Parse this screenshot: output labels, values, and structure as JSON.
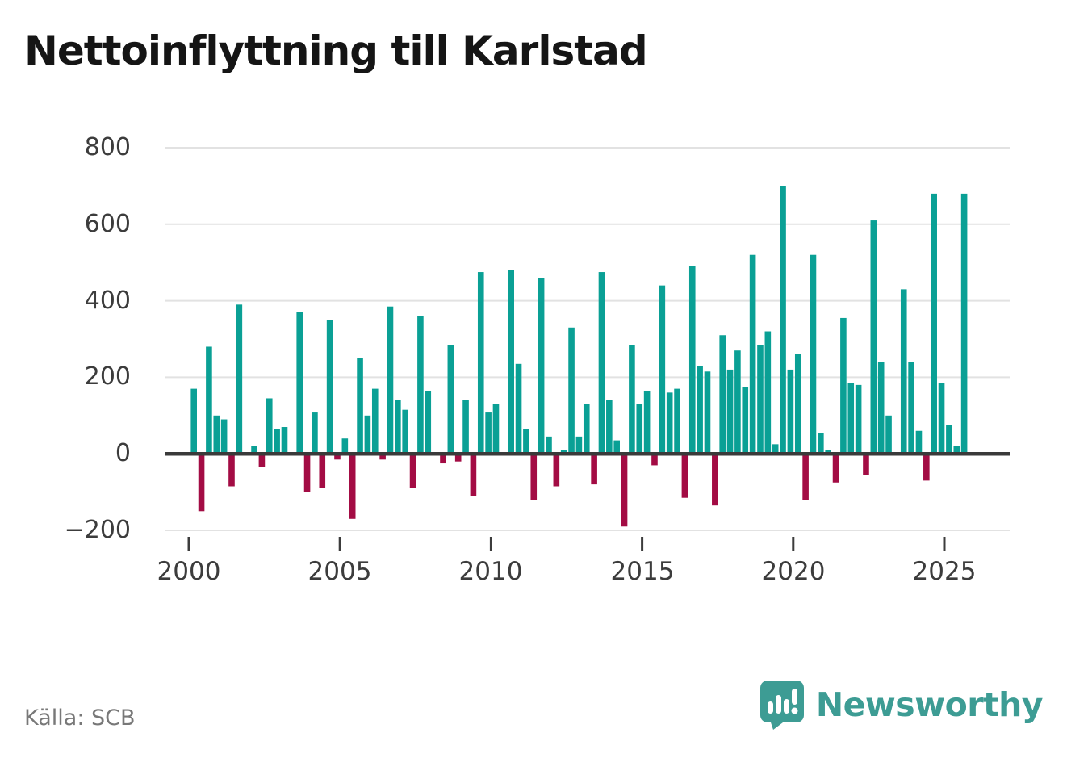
{
  "title": "Nettoinflyttning till Karlstad",
  "source": "Källa: SCB",
  "branding": {
    "name": "Newsworthy",
    "logo_icon": "speech-bubble-bar-chart"
  },
  "colors": {
    "positive_bar": "#0aa095",
    "negative_bar": "#a30c44",
    "grid": "#e2e2e2",
    "zero_line": "#3a3a3a",
    "axis_text": "#3c3c3c",
    "title_text": "#151515",
    "source_text": "#787878",
    "brand_teal": "#3d9c94"
  },
  "chart_data": {
    "type": "bar",
    "title": "Nettoinflyttning till Karlstad",
    "description": "Quarterly net migration to Karlstad, positive bars teal, negative bars crimson",
    "x_period": "quarterly",
    "x_range": [
      "2000 Q1",
      "2025 Q3"
    ],
    "ylim": [
      -200,
      800
    ],
    "grid": true,
    "ytick_values": [
      800,
      600,
      400,
      200,
      0,
      -200
    ],
    "ytick_labels": [
      "800",
      "600",
      "400",
      "200",
      "0",
      "−200"
    ],
    "xtick_years": [
      2000,
      2005,
      2010,
      2015,
      2020,
      2025
    ],
    "xtick_labels": [
      "2000",
      "2005",
      "2010",
      "2015",
      "2020",
      "2025"
    ],
    "series": [
      {
        "year": 2000,
        "values": [
          170,
          -150,
          280,
          100
        ]
      },
      {
        "year": 2001,
        "values": [
          90,
          -85,
          390,
          0
        ]
      },
      {
        "year": 2002,
        "values": [
          20,
          -35,
          145,
          65
        ]
      },
      {
        "year": 2003,
        "values": [
          70,
          0,
          370,
          -100
        ]
      },
      {
        "year": 2004,
        "values": [
          110,
          -90,
          350,
          -15
        ]
      },
      {
        "year": 2005,
        "values": [
          40,
          -170,
          250,
          100
        ]
      },
      {
        "year": 2006,
        "values": [
          170,
          -15,
          385,
          140
        ]
      },
      {
        "year": 2007,
        "values": [
          115,
          -90,
          360,
          165
        ]
      },
      {
        "year": 2008,
        "values": [
          0,
          -25,
          285,
          -20
        ]
      },
      {
        "year": 2009,
        "values": [
          140,
          -110,
          475,
          110
        ]
      },
      {
        "year": 2010,
        "values": [
          130,
          0,
          480,
          235
        ]
      },
      {
        "year": 2011,
        "values": [
          65,
          -120,
          460,
          45
        ]
      },
      {
        "year": 2012,
        "values": [
          -85,
          10,
          330,
          45
        ]
      },
      {
        "year": 2013,
        "values": [
          130,
          -80,
          475,
          140
        ]
      },
      {
        "year": 2014,
        "values": [
          35,
          -190,
          285,
          130
        ]
      },
      {
        "year": 2015,
        "values": [
          165,
          -30,
          440,
          160
        ]
      },
      {
        "year": 2016,
        "values": [
          170,
          -115,
          490,
          230
        ]
      },
      {
        "year": 2017,
        "values": [
          215,
          -135,
          310,
          220
        ]
      },
      {
        "year": 2018,
        "values": [
          270,
          175,
          520,
          285
        ]
      },
      {
        "year": 2019,
        "values": [
          320,
          25,
          700,
          220
        ]
      },
      {
        "year": 2020,
        "values": [
          260,
          -120,
          520,
          55
        ]
      },
      {
        "year": 2021,
        "values": [
          10,
          -75,
          355,
          185
        ]
      },
      {
        "year": 2022,
        "values": [
          180,
          -55,
          610,
          240
        ]
      },
      {
        "year": 2023,
        "values": [
          100,
          0,
          430,
          240
        ]
      },
      {
        "year": 2024,
        "values": [
          60,
          -70,
          680,
          185
        ]
      },
      {
        "year": 2025,
        "values": [
          75,
          20,
          680
        ]
      }
    ]
  }
}
